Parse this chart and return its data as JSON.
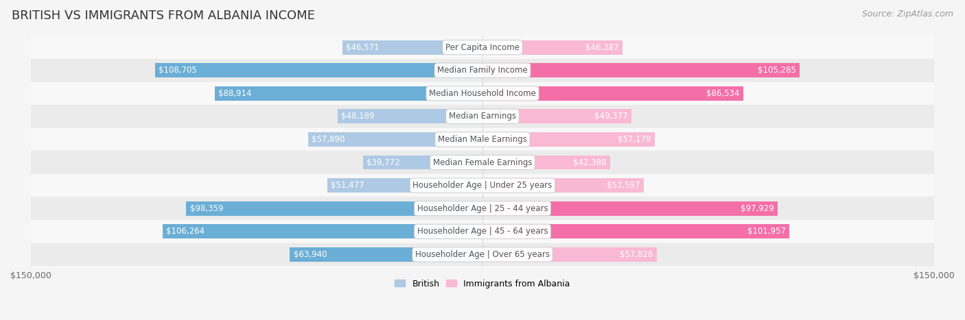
{
  "title": "BRITISH VS IMMIGRANTS FROM ALBANIA INCOME",
  "source": "Source: ZipAtlas.com",
  "categories": [
    "Per Capita Income",
    "Median Family Income",
    "Median Household Income",
    "Median Earnings",
    "Median Male Earnings",
    "Median Female Earnings",
    "Householder Age | Under 25 years",
    "Householder Age | 25 - 44 years",
    "Householder Age | 45 - 64 years",
    "Householder Age | Over 65 years"
  ],
  "british_values": [
    46571,
    108705,
    88914,
    48189,
    57890,
    39772,
    51477,
    98359,
    106264,
    63940
  ],
  "albania_values": [
    46387,
    105285,
    86534,
    49377,
    57179,
    42388,
    53597,
    97929,
    101957,
    57828
  ],
  "british_labels": [
    "$46,571",
    "$108,705",
    "$88,914",
    "$48,189",
    "$57,890",
    "$39,772",
    "$51,477",
    "$98,359",
    "$106,264",
    "$63,940"
  ],
  "albania_labels": [
    "$46,387",
    "$105,285",
    "$86,534",
    "$49,377",
    "$57,179",
    "$42,388",
    "$53,597",
    "$97,929",
    "$101,957",
    "$57,828"
  ],
  "british_color_high": "#6baed6",
  "british_color_low": "#aec9e3",
  "albania_color_high": "#f46fa8",
  "albania_color_low": "#f9b8d3",
  "max_value": 150000,
  "bar_height": 0.62,
  "background_color": "#f5f5f5",
  "row_bg_odd": "#ebebeb",
  "row_bg_even": "#f8f8f8",
  "label_color_inside": "#ffffff",
  "label_color_outside": "#666666",
  "category_text_color": "#555555",
  "legend_british": "British",
  "legend_albania": "Immigrants from Albania",
  "title_fontsize": 13,
  "source_fontsize": 9,
  "label_fontsize": 8.5,
  "category_fontsize": 8.5,
  "axis_label_fontsize": 9,
  "high_threshold": 60000,
  "inside_label_threshold": 30000
}
